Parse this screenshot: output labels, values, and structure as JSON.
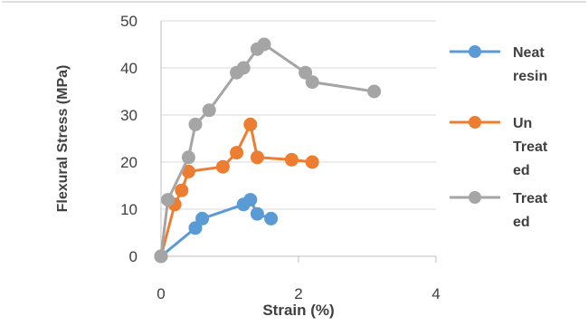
{
  "chart_data": {
    "type": "scatter",
    "title": "",
    "xlabel": "Strain (%)",
    "ylabel": "Flexural Stress (MPa)",
    "xlim": [
      0,
      4
    ],
    "ylim": [
      0,
      50
    ],
    "x_ticks": [
      0,
      2,
      4
    ],
    "y_ticks": [
      0,
      10,
      20,
      30,
      40,
      50
    ],
    "grid": "horizontal",
    "legend_position": "right",
    "series": [
      {
        "name": "Neat resin",
        "color": "#5b9bd5",
        "points": [
          [
            0,
            0
          ],
          [
            0.5,
            6
          ],
          [
            0.6,
            8
          ],
          [
            1.2,
            11
          ],
          [
            1.3,
            12
          ],
          [
            1.4,
            9
          ],
          [
            1.6,
            8
          ]
        ]
      },
      {
        "name": "Un Treated",
        "color": "#ed7d31",
        "points": [
          [
            0,
            0
          ],
          [
            0.2,
            11
          ],
          [
            0.3,
            14
          ],
          [
            0.4,
            18
          ],
          [
            0.9,
            19
          ],
          [
            1.1,
            22
          ],
          [
            1.3,
            28
          ],
          [
            1.4,
            21
          ],
          [
            1.9,
            20.5
          ],
          [
            2.2,
            20
          ]
        ]
      },
      {
        "name": "Treated",
        "color": "#a5a5a5",
        "points": [
          [
            0,
            0
          ],
          [
            0.1,
            12
          ],
          [
            0.4,
            21
          ],
          [
            0.5,
            28
          ],
          [
            0.7,
            31
          ],
          [
            1.1,
            39
          ],
          [
            1.2,
            40
          ],
          [
            1.4,
            44
          ],
          [
            1.5,
            45
          ],
          [
            2.1,
            39
          ],
          [
            2.2,
            37
          ],
          [
            3.1,
            35
          ]
        ]
      }
    ],
    "legend": [
      {
        "lines": [
          "Neat",
          "resin"
        ]
      },
      {
        "lines": [
          "Un",
          "Treat",
          "ed"
        ]
      },
      {
        "lines": [
          "Treat",
          "ed"
        ]
      }
    ]
  }
}
